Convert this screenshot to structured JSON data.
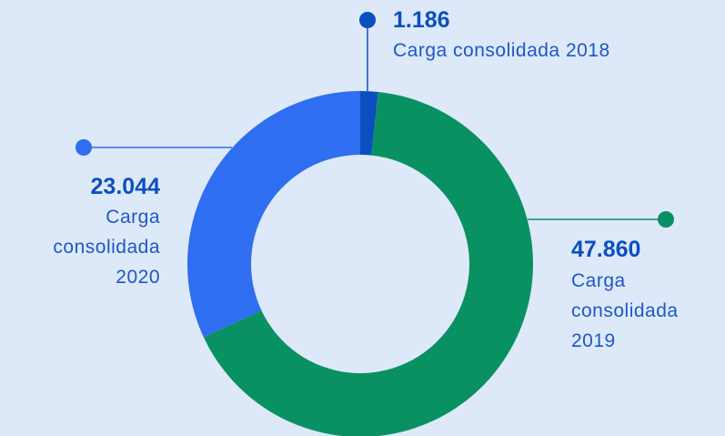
{
  "chart_data": {
    "type": "donut",
    "categories": [
      "Carga consolidada 2018",
      "Carga consolidada 2019",
      "Carga consolidada 2020"
    ],
    "values": [
      1186,
      47860,
      23044
    ],
    "value_labels": [
      "1.186",
      "47.860",
      "23.044"
    ],
    "colors": [
      "#0a4fc0",
      "#0a9163",
      "#2f6ef0"
    ]
  }
}
